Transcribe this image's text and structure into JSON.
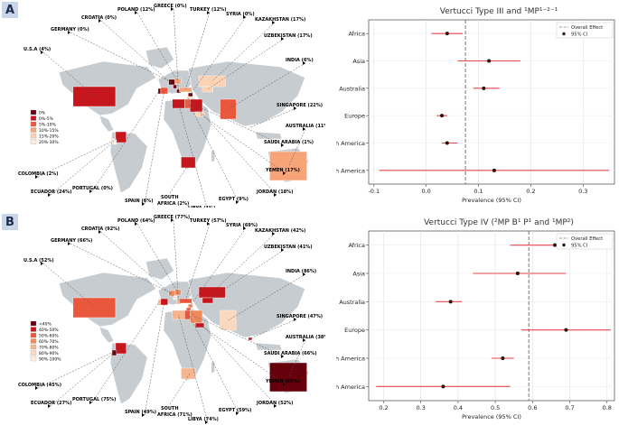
{
  "panels": [
    {
      "letter": "A",
      "map": {
        "labels": {
          "usa": "U.S.A (4%)",
          "germany": "GERMANY (0%)",
          "croatia": "CROATIA (0%)",
          "poland": "POLAND (12%)",
          "greece": "GREECE (0%)",
          "turkey": "TURKEY (12%)",
          "syria": "SYRIA (0%)",
          "kazakhstan": "KAZAKHSTAN (17%)",
          "uzbekistan": "UZBEKISTAN (17%)",
          "india": "INDIA (6%)",
          "singapore": "SINGAPORE (22%)",
          "australia": "AUSTRALIA (11%)",
          "saudi": "SAUDI ARABIA (1%)",
          "yemen": "YEMEN (17%)",
          "jordan": "JORDAN (18%)",
          "egypt": "EGYPT (9%)",
          "libya": "LIBYA (1%)",
          "south_africa_1": "SOUTH",
          "south_africa_2": "AFRICA (2%)",
          "spain": "SPAIN (6%)",
          "portugal": "PORTUGAL (0%)",
          "ecuador": "ECUADOR (24%)",
          "colombia": "COLOMBIA (2%)"
        },
        "legend": [
          {
            "label": "0%",
            "color": "#67000d"
          },
          {
            "label": "0%-5%",
            "color": "#c4161c"
          },
          {
            "label": "5%-10%",
            "color": "#e9583c"
          },
          {
            "label": "10%-15%",
            "color": "#f6a478"
          },
          {
            "label": "15%-20%",
            "color": "#fbd2b4"
          },
          {
            "label": "20%-30%",
            "color": "#fdeee2"
          }
        ]
      },
      "chart_data": {
        "type": "forest",
        "title": "Vertucci Type III and ¹MP¹⁻²⁻¹",
        "xlabel": "Prevalence (95% CI)",
        "categories": [
          "Africa",
          "Asia",
          "Australia",
          "Europe",
          "North America",
          "South America"
        ],
        "estimates": [
          0.04,
          0.12,
          0.11,
          0.03,
          0.04,
          0.13
        ],
        "ci_lower": [
          0.01,
          0.06,
          0.09,
          0.02,
          0.03,
          -0.09
        ],
        "ci_upper": [
          0.07,
          0.18,
          0.14,
          0.04,
          0.06,
          0.35
        ],
        "overall_effect": 0.075,
        "xlim": [
          -0.11,
          0.36
        ],
        "xticks": [
          "-0.1",
          "0.0",
          "0.1",
          "0.2",
          "0.3"
        ],
        "legend": {
          "overall": "Overall Effect",
          "ci": "95% CI"
        }
      }
    },
    {
      "letter": "B",
      "map": {
        "labels": {
          "usa": "U.S.A (52%)",
          "germany": "GERMANY (66%)",
          "croatia": "CROATIA (92%)",
          "poland": "POLAND (64%)",
          "greece": "GREECE (77%)",
          "turkey": "TURKEY (57%)",
          "syria": "SYRIA (69%)",
          "kazakhstan": "KAZAKHSTAN (42%)",
          "uzbekistan": "UZBEKISTAN (41%)",
          "india": "INDIA (86%)",
          "singapore": "SINGAPORE (47%)",
          "australia": "AUSTRALIA (38%)",
          "saudi": "SAUDI ARABIA (66%)",
          "yemen": "YEMEN (46%)",
          "jordan": "JORDAN (52%)",
          "egypt": "EGYPT (59%)",
          "libya": "LIBYA (74%)",
          "south_africa_1": "SOUTH",
          "south_africa_2": "AFRICA (71%)",
          "spain": "SPAIN (49%)",
          "portugal": "PORTUGAL (75%)",
          "ecuador": "ECUADOR (27%)",
          "colombia": "COLOMBIA (45%)"
        },
        "legend": [
          {
            "label": "<40%",
            "color": "#67000d"
          },
          {
            "label": "40%-50%",
            "color": "#c4161c"
          },
          {
            "label": "50%-60%",
            "color": "#e9583c"
          },
          {
            "label": "60%-70%",
            "color": "#f08a5c"
          },
          {
            "label": "70%-80%",
            "color": "#f6b48f"
          },
          {
            "label": "80%-90%",
            "color": "#fbd9c0"
          },
          {
            "label": "90%-100%",
            "color": "#fdeee2"
          }
        ]
      },
      "chart_data": {
        "type": "forest",
        "title": "Vertucci Type IV (²MP B¹ P¹ and ¹MP²)",
        "xlabel": "Prevalence (95% CI)",
        "categories": [
          "Africa",
          "Asia",
          "Australia",
          "Europe",
          "North America",
          "South America"
        ],
        "estimates": [
          0.66,
          0.56,
          0.38,
          0.69,
          0.52,
          0.36
        ],
        "ci_lower": [
          0.54,
          0.44,
          0.34,
          0.57,
          0.49,
          0.18
        ],
        "ci_upper": [
          0.78,
          0.69,
          0.41,
          0.81,
          0.55,
          0.54
        ],
        "overall_effect": 0.59,
        "xlim": [
          0.16,
          0.82
        ],
        "xticks": [
          "0.2",
          "0.3",
          "0.4",
          "0.5",
          "0.6",
          "0.7",
          "0.8"
        ],
        "legend": {
          "overall": "Overall Effect",
          "ci": "95% CI"
        }
      }
    }
  ]
}
